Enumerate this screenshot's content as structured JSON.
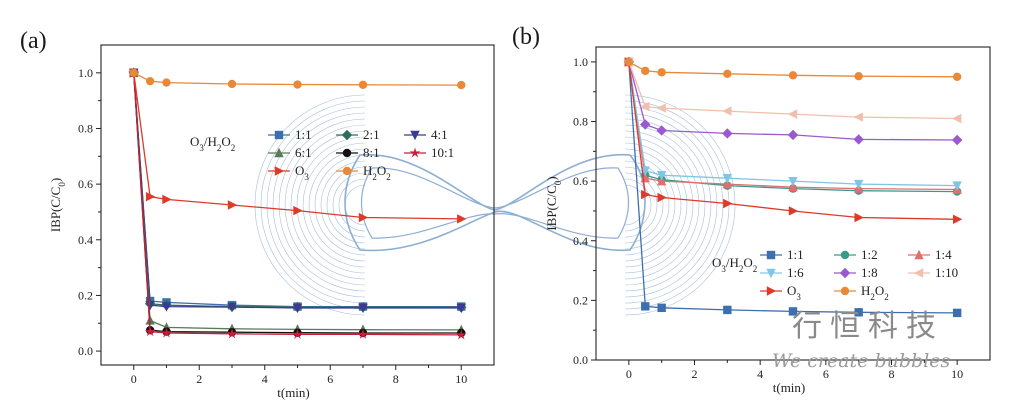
{
  "chart_data": [
    {
      "type": "line",
      "panel_label": "(a)",
      "xlabel": "t(min)",
      "ylabel_main": "IBP(C/C",
      "ylabel_sub": "0",
      "ylabel_end": ")",
      "xlim": [
        -1,
        11
      ],
      "ylim": [
        -0.05,
        1.1
      ],
      "x_ticks": [
        0,
        2,
        4,
        6,
        8,
        10
      ],
      "y_ticks": [
        0.0,
        0.2,
        0.4,
        0.6,
        0.8,
        1.0
      ],
      "x_tick_labels": [
        "0",
        "2",
        "4",
        "6",
        "8",
        "10"
      ],
      "y_tick_labels": [
        "0.0",
        "0.2",
        "0.4",
        "0.6",
        "0.8",
        "1.0"
      ],
      "legend_title_main": "O",
      "legend_title_sub1": "3",
      "legend_title_mid": "/H",
      "legend_title_sub2": "2",
      "legend_title_o": "O",
      "legend_title_sub3": "2",
      "x": [
        0,
        0.5,
        1,
        3,
        5,
        7,
        10
      ],
      "series": [
        {
          "name": "1:1",
          "values": [
            1.0,
            0.18,
            0.175,
            0.165,
            0.16,
            0.16,
            0.16
          ],
          "color": "#3d6fb0",
          "marker": "square"
        },
        {
          "name": "2:1",
          "values": [
            1.0,
            0.17,
            0.165,
            0.16,
            0.158,
            0.158,
            0.157
          ],
          "color": "#2f6e5a",
          "marker": "diamond"
        },
        {
          "name": "4:1",
          "values": [
            1.0,
            0.165,
            0.16,
            0.158,
            0.155,
            0.155,
            0.155
          ],
          "color": "#3b3b8f",
          "marker": "triangle-down"
        },
        {
          "name": "6:1",
          "values": [
            1.0,
            0.11,
            0.085,
            0.08,
            0.078,
            0.077,
            0.076
          ],
          "color": "#5a7a5a",
          "marker": "triangle-up"
        },
        {
          "name": "8:1",
          "values": [
            1.0,
            0.075,
            0.07,
            0.068,
            0.066,
            0.065,
            0.065
          ],
          "color": "#111111",
          "marker": "circle"
        },
        {
          "name": "10:1",
          "values": [
            1.0,
            0.07,
            0.065,
            0.062,
            0.06,
            0.06,
            0.058
          ],
          "color": "#c81e3a",
          "marker": "star"
        },
        {
          "name": "O3",
          "label_main": "O",
          "label_sub": "3",
          "values": [
            1.0,
            0.555,
            0.545,
            0.525,
            0.505,
            0.48,
            0.475
          ],
          "color": "#dd3a2a",
          "marker": "triangle-right"
        },
        {
          "name": "H2O2",
          "label_main": "H",
          "label_sub": "2",
          "label_mid": "O",
          "label_sub2": "2",
          "values": [
            1.0,
            0.97,
            0.965,
            0.96,
            0.958,
            0.957,
            0.956
          ],
          "color": "#e8893a",
          "marker": "circle"
        }
      ]
    },
    {
      "type": "line",
      "panel_label": "(b)",
      "xlabel": "t(min)",
      "ylabel_main": "IBP(C/C",
      "ylabel_sub": "0",
      "ylabel_end": ")",
      "xlim": [
        -1,
        11
      ],
      "ylim": [
        0.0,
        1.05
      ],
      "x_ticks": [
        0,
        2,
        4,
        6,
        8,
        10
      ],
      "y_ticks": [
        0.0,
        0.2,
        0.4,
        0.6,
        0.8,
        1.0
      ],
      "x_tick_labels": [
        "0",
        "2",
        "4",
        "6",
        "8",
        "10"
      ],
      "y_tick_labels": [
        "0.0",
        "0.2",
        "0.4",
        "0.6",
        "0.8",
        "1.0"
      ],
      "legend_title_main": "O",
      "legend_title_sub1": "3",
      "legend_title_mid": "/H",
      "legend_title_sub2": "2",
      "legend_title_o": "O",
      "legend_title_sub3": "2",
      "x": [
        0,
        0.5,
        1,
        3,
        5,
        7,
        10
      ],
      "series": [
        {
          "name": "1:1",
          "values": [
            1.0,
            0.18,
            0.175,
            0.168,
            0.163,
            0.16,
            0.158
          ],
          "color": "#3d6fb0",
          "marker": "square"
        },
        {
          "name": "1:2",
          "values": [
            1.0,
            0.62,
            0.605,
            0.585,
            0.575,
            0.568,
            0.565
          ],
          "color": "#3a9a8a",
          "marker": "circle"
        },
        {
          "name": "1:4",
          "values": [
            1.0,
            0.61,
            0.6,
            0.59,
            0.58,
            0.575,
            0.572
          ],
          "color": "#e07070",
          "marker": "triangle-up"
        },
        {
          "name": "1:6",
          "values": [
            1.0,
            0.635,
            0.62,
            0.61,
            0.6,
            0.59,
            0.585
          ],
          "color": "#7fc6e6",
          "marker": "triangle-down"
        },
        {
          "name": "1:8",
          "values": [
            1.0,
            0.79,
            0.77,
            0.76,
            0.755,
            0.74,
            0.738
          ],
          "color": "#9b59d0",
          "marker": "diamond"
        },
        {
          "name": "1:10",
          "values": [
            1.0,
            0.85,
            0.845,
            0.835,
            0.825,
            0.815,
            0.81
          ],
          "color": "#f2bfae",
          "marker": "triangle-left"
        },
        {
          "name": "O3",
          "label_main": "O",
          "label_sub": "3",
          "values": [
            1.0,
            0.555,
            0.545,
            0.525,
            0.5,
            0.478,
            0.472
          ],
          "color": "#dd3a2a",
          "marker": "triangle-right"
        },
        {
          "name": "H2O2",
          "label_main": "H",
          "label_sub": "2",
          "label_mid": "O",
          "label_sub2": "2",
          "values": [
            1.0,
            0.97,
            0.965,
            0.96,
            0.955,
            0.952,
            0.95
          ],
          "color": "#e8893a",
          "marker": "circle"
        }
      ]
    }
  ],
  "watermark": {
    "chinese": "行恒科技",
    "english": "We create bubbles"
  }
}
